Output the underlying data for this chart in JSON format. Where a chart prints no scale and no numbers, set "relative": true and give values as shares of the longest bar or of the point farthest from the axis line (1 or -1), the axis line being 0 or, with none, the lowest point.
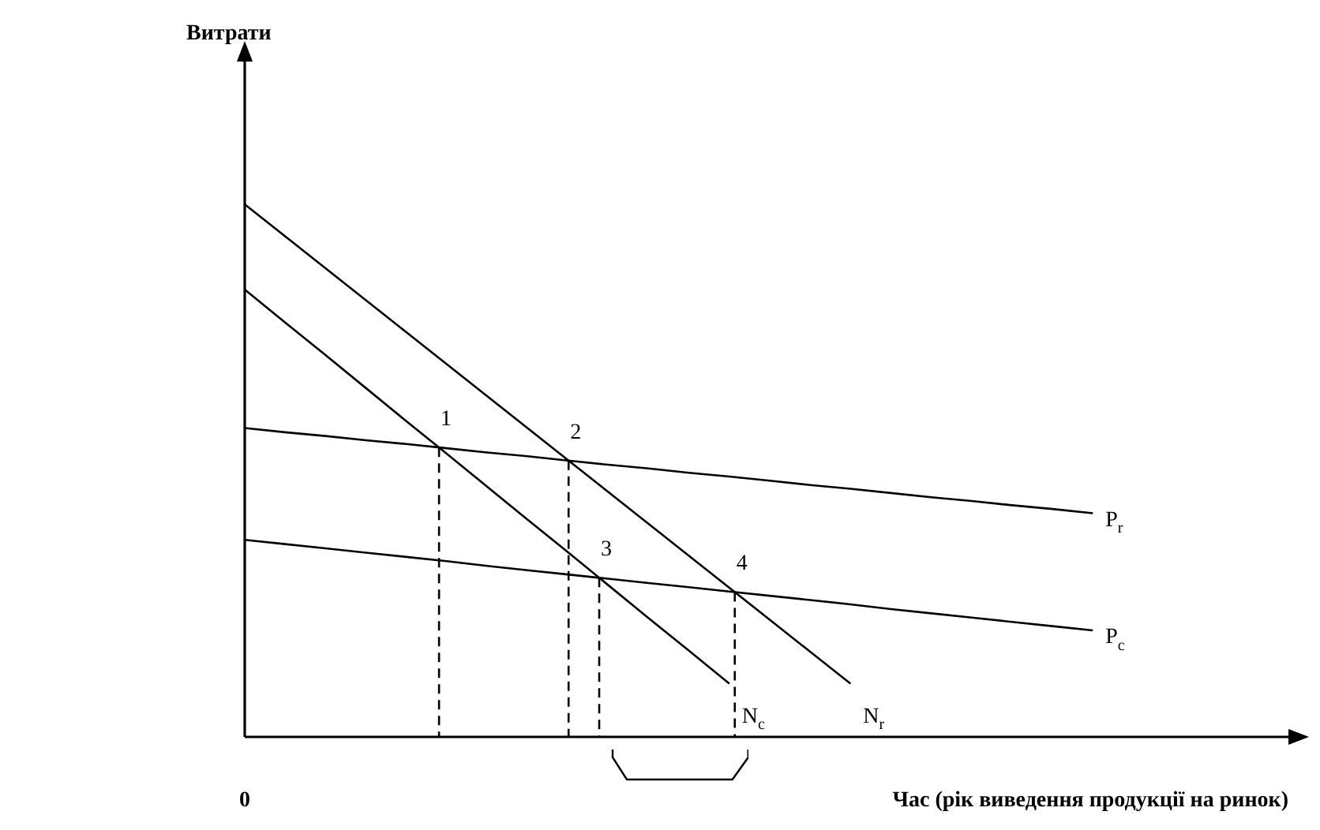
{
  "chart_data": {
    "type": "line",
    "relative": true,
    "xlabel": "Час (рік виведення продукції на ринок)",
    "legend": false,
    "marker": "none",
    "line_style": "solid",
    "annotations": [
      "Витрати",
      "0",
      "1",
      "2",
      "3",
      "4"
    ],
    "categories": [
      null,
      null,
      null,
      null,
      null,
      null,
      null,
      null,
      null,
      null,
      null,
      null,
      null,
      null,
      null,
      null,
      null,
      null,
      null,
      null,
      null,
      null,
      null,
      null,
      null,
      null,
      null
    ],
    "series": [
      {
        "name": "N$_{r}$",
        "color": "#000000",
        "values": [
          1,
          0.94,
          0.88,
          0.82,
          0.76,
          0.7,
          0.64,
          0.58,
          0.52,
          0.46,
          0.4,
          0.34,
          0.28,
          0.22,
          0.16,
          0.1,
          null,
          null,
          null,
          null,
          null,
          null,
          null,
          null,
          null,
          null,
          null
        ]
      },
      {
        "name": "N$_{c}$",
        "color": "#000000",
        "values": [
          0.84,
          0.778,
          0.717,
          0.655,
          0.593,
          0.532,
          0.47,
          0.408,
          0.347,
          0.285,
          0.223,
          0.162,
          0.1,
          null,
          null,
          null,
          null,
          null,
          null,
          null,
          null,
          null,
          null,
          null,
          null,
          null,
          null
        ]
      },
      {
        "name": "P$_{r}$",
        "color": "#000000",
        "values": [
          0.58,
          0.572,
          0.565,
          0.557,
          0.55,
          0.542,
          0.534,
          0.527,
          0.519,
          0.511,
          0.504,
          0.496,
          0.489,
          0.481,
          0.473,
          0.466,
          0.458,
          0.45,
          0.443,
          0.435,
          0.428,
          0.42,
          null,
          null,
          null,
          null,
          null
        ]
      },
      {
        "name": "P$_{c}$",
        "color": "#000000",
        "values": [
          0.37,
          0.362,
          0.354,
          0.346,
          0.338,
          0.33,
          0.321,
          0.313,
          0.305,
          0.297,
          0.289,
          0.281,
          0.273,
          0.265,
          0.257,
          0.249,
          0.24,
          0.232,
          0.224,
          0.216,
          0.208,
          0.2,
          null,
          null,
          null,
          null,
          null
        ]
      }
    ]
  }
}
